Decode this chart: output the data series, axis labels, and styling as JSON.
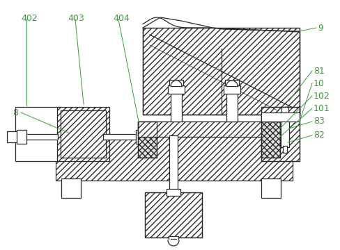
{
  "background_color": "#ffffff",
  "line_color": "#2a2a2a",
  "label_color": "#3a9a3a",
  "fig_w": 4.88,
  "fig_h": 3.6,
  "dpi": 100
}
